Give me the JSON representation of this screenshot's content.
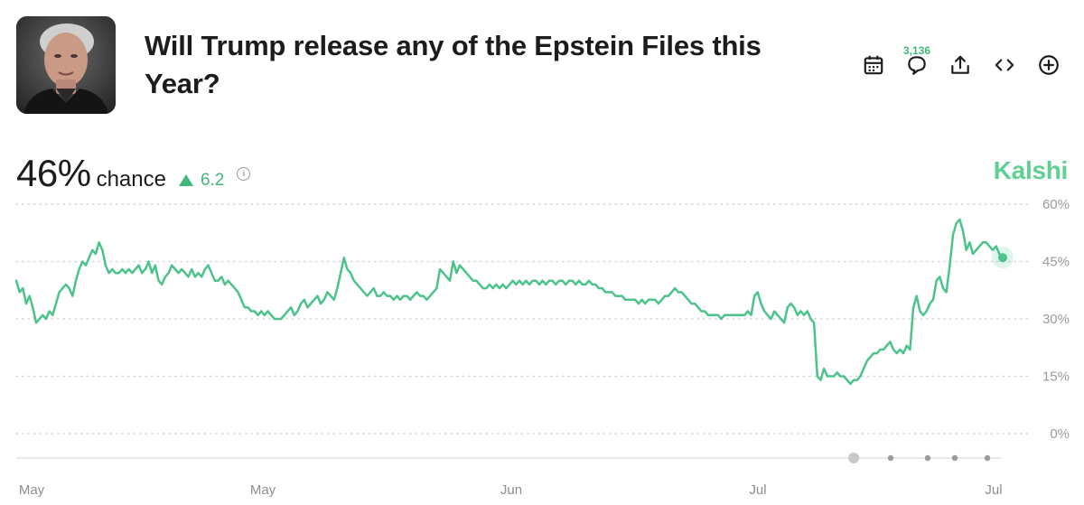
{
  "market": {
    "title": "Will Trump release any of the Epstein Files this Year?",
    "probability": "46%",
    "chance_label": "chance",
    "change": "6.2",
    "info_symbol": "i",
    "comment_count": "3,136",
    "brand": "Kalshi"
  },
  "icons": [
    "calendar-icon",
    "comment-icon",
    "share-icon",
    "embed-icon",
    "add-icon"
  ],
  "colors": {
    "accent": "#4cc38a",
    "brand": "#5fcf93",
    "grid": "#d6d6d6"
  },
  "chart_data": {
    "type": "line",
    "x_ticks": [
      "May",
      "May",
      "Jun",
      "Jul",
      "Jul"
    ],
    "y_ticks": [
      "60%",
      "45%",
      "30%",
      "15%",
      "0%"
    ],
    "ylim": [
      0,
      60
    ],
    "grid": true,
    "series": [
      {
        "values": [
          40,
          37,
          38,
          34,
          36,
          33,
          29,
          30,
          31,
          30,
          32,
          31,
          34,
          37,
          38,
          39,
          38,
          36,
          40,
          43,
          45,
          44,
          46,
          48,
          47,
          50,
          48,
          44,
          42,
          43,
          42,
          42,
          43,
          42,
          43,
          42,
          43,
          44,
          42,
          43,
          45,
          42,
          44,
          40,
          39,
          41,
          42,
          44,
          43,
          42,
          43,
          42,
          41,
          43,
          41,
          42,
          41,
          43,
          44,
          42,
          40,
          40,
          41,
          39,
          40,
          39,
          38,
          37,
          35,
          33,
          33,
          32,
          32,
          31,
          32,
          31,
          32,
          31,
          30,
          30,
          30,
          31,
          32,
          33,
          31,
          32,
          34,
          35,
          33,
          34,
          35,
          36,
          34,
          35,
          37,
          36,
          35,
          38,
          42,
          46,
          43,
          42,
          40,
          39,
          38,
          37,
          36,
          37,
          38,
          36,
          36,
          37,
          36,
          36,
          35,
          36,
          35,
          36,
          36,
          35,
          36,
          37,
          36,
          36,
          35,
          36,
          37,
          38,
          43,
          42,
          41,
          40,
          45,
          42,
          44,
          43,
          42,
          41,
          40,
          40,
          39,
          38,
          38,
          39,
          38,
          39,
          38,
          39,
          38,
          39,
          40,
          39,
          40,
          39,
          40,
          39,
          40,
          40,
          39,
          40,
          39,
          40,
          40,
          39,
          40,
          40,
          39,
          40,
          40,
          39,
          40,
          39,
          39,
          40,
          39,
          39,
          38,
          38,
          37,
          37,
          37,
          36,
          36,
          36,
          35,
          35,
          35,
          35,
          34,
          35,
          34,
          35,
          35,
          35,
          34,
          35,
          36,
          36,
          37,
          38,
          37,
          37,
          36,
          35,
          34,
          34,
          33,
          32,
          32,
          31,
          31,
          31,
          31,
          30,
          31,
          31,
          31,
          31,
          31,
          31,
          31,
          32,
          31,
          36,
          37,
          34,
          32,
          31,
          30,
          32,
          31,
          30,
          29,
          33,
          34,
          33,
          31,
          32,
          31,
          32,
          30,
          29,
          15,
          14,
          17,
          15,
          15,
          15,
          16,
          15,
          15,
          14,
          13,
          14,
          14,
          15,
          17,
          19,
          20,
          21,
          21,
          22,
          22,
          23,
          24,
          22,
          21,
          22,
          21,
          23,
          22,
          33,
          36,
          32,
          31,
          32,
          34,
          35,
          40,
          41,
          38,
          37,
          44,
          52,
          55,
          56,
          53,
          48,
          50,
          47,
          48,
          49,
          50,
          50,
          49,
          48,
          49,
          47,
          46
        ],
        "dot_value": 46
      }
    ],
    "pager_dots": 5,
    "pager_active": 0
  }
}
